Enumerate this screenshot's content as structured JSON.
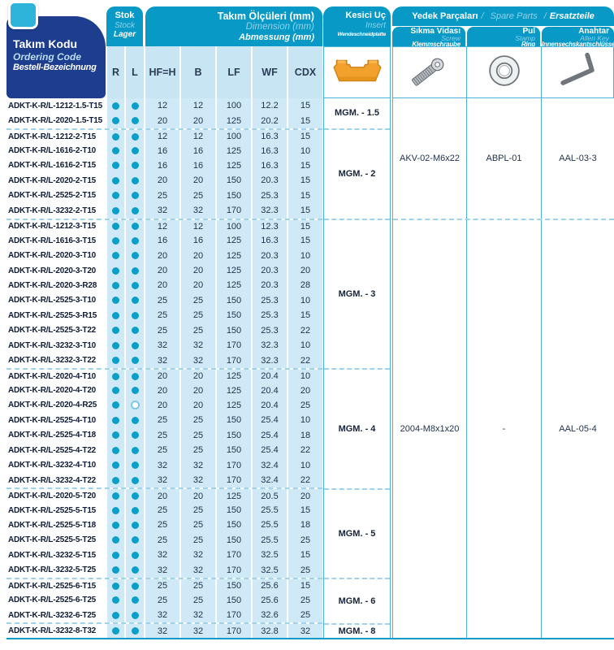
{
  "colors": {
    "accent_teal": "#0999c7",
    "dark_blue": "#1d3d8f",
    "row_bg": "#cfe9f6",
    "border_blue": "#4ab2d9",
    "dot_teal": "#0a9ec9",
    "insert_orange": "#f2a12c"
  },
  "header": {
    "ordering_code": {
      "line1": "Takım Kodu",
      "line2": "Ordering Code",
      "line3": "Bestell-Bezeichnung"
    },
    "stock": {
      "line1": "Stok",
      "line2": "Stock",
      "line3": "Lager"
    },
    "dimensions": {
      "line1": "Takım Ölçüleri (mm)",
      "line2": "Dimension (mm)",
      "line3": "Abmessung (mm)"
    },
    "insert": {
      "line1": "Kesici Uç",
      "line2": "Insert",
      "line3": "Wendeschneidplatte"
    },
    "spare_parts": {
      "title_tr": "Yedek Parçaları",
      "title_en": "Spare Parts",
      "title_de": "Ersatzteile",
      "sep": "/",
      "columns": [
        {
          "line1": "Sıkma Vidası",
          "line2": "Screw",
          "line3": "Klemmschraube",
          "icon": "screw-icon"
        },
        {
          "line1": "Pul",
          "line2": "Stamp",
          "line3": "Ring",
          "icon": "ring-icon"
        },
        {
          "line1": "Anahtar",
          "line2": "Allen Key",
          "line3": "Innensechskantschlüssel",
          "icon": "allen-key-icon"
        }
      ]
    },
    "sub_columns": [
      "R",
      "L",
      "HF=H",
      "B",
      "LF",
      "WF",
      "CDX"
    ]
  },
  "insert_groups": [
    {
      "label": "MGM. - 1.5",
      "rows": 2
    },
    {
      "label": "MGM. - 2",
      "rows": 6
    },
    {
      "label": "MGM. - 3",
      "rows": 10
    },
    {
      "label": "MGM. - 4",
      "rows": 8
    },
    {
      "label": "MGM. - 5",
      "rows": 6
    },
    {
      "label": "MGM. - 6",
      "rows": 3
    },
    {
      "label": "MGM. - 8",
      "rows": 1
    }
  ],
  "spare_groups": [
    {
      "rows": 8,
      "values": [
        "AKV-02-M6x22",
        "ABPL-01",
        "AAL-03-3"
      ]
    },
    {
      "rows": 28,
      "values": [
        "2004-M8x1x20",
        "-",
        "AAL-05-4"
      ]
    }
  ],
  "rows": [
    {
      "code": "ADKT-K-R/L-1212-1.5-T15",
      "r": "filled",
      "l": "filled",
      "hf": "12",
      "b": "12",
      "lf": "100",
      "wf": "12.2",
      "cdx": "15",
      "gs": false
    },
    {
      "code": "ADKT-K-R/L-2020-1.5-T15",
      "r": "filled",
      "l": "filled",
      "hf": "20",
      "b": "20",
      "lf": "125",
      "wf": "20.2",
      "cdx": "15",
      "gs": false
    },
    {
      "code": "ADKT-K-R/L-1212-2-T15",
      "r": "filled",
      "l": "filled",
      "hf": "12",
      "b": "12",
      "lf": "100",
      "wf": "16.3",
      "cdx": "15",
      "gs": true
    },
    {
      "code": "ADKT-K-R/L-1616-2-T10",
      "r": "filled",
      "l": "filled",
      "hf": "16",
      "b": "16",
      "lf": "125",
      "wf": "16.3",
      "cdx": "10",
      "gs": false
    },
    {
      "code": "ADKT-K-R/L-1616-2-T15",
      "r": "filled",
      "l": "filled",
      "hf": "16",
      "b": "16",
      "lf": "125",
      "wf": "16.3",
      "cdx": "15",
      "gs": false
    },
    {
      "code": "ADKT-K-R/L-2020-2-T15",
      "r": "filled",
      "l": "filled",
      "hf": "20",
      "b": "20",
      "lf": "150",
      "wf": "20.3",
      "cdx": "15",
      "gs": false
    },
    {
      "code": "ADKT-K-R/L-2525-2-T15",
      "r": "filled",
      "l": "filled",
      "hf": "25",
      "b": "25",
      "lf": "150",
      "wf": "25.3",
      "cdx": "15",
      "gs": false
    },
    {
      "code": "ADKT-K-R/L-3232-2-T15",
      "r": "filled",
      "l": "filled",
      "hf": "32",
      "b": "32",
      "lf": "170",
      "wf": "32.3",
      "cdx": "15",
      "gs": false
    },
    {
      "code": "ADKT-K-R/L-1212-3-T15",
      "r": "filled",
      "l": "filled",
      "hf": "12",
      "b": "12",
      "lf": "100",
      "wf": "12.3",
      "cdx": "15",
      "gs": true
    },
    {
      "code": "ADKT-K-R/L-1616-3-T15",
      "r": "filled",
      "l": "filled",
      "hf": "16",
      "b": "16",
      "lf": "125",
      "wf": "16.3",
      "cdx": "15",
      "gs": false
    },
    {
      "code": "ADKT-K-R/L-2020-3-T10",
      "r": "filled",
      "l": "filled",
      "hf": "20",
      "b": "20",
      "lf": "125",
      "wf": "20.3",
      "cdx": "10",
      "gs": false
    },
    {
      "code": "ADKT-K-R/L-2020-3-T20",
      "r": "filled",
      "l": "filled",
      "hf": "20",
      "b": "20",
      "lf": "125",
      "wf": "20.3",
      "cdx": "20",
      "gs": false
    },
    {
      "code": "ADKT-K-R/L-2020-3-R28",
      "r": "filled",
      "l": "filled",
      "hf": "20",
      "b": "20",
      "lf": "125",
      "wf": "20.3",
      "cdx": "28",
      "gs": false
    },
    {
      "code": "ADKT-K-R/L-2525-3-T10",
      "r": "filled",
      "l": "filled",
      "hf": "25",
      "b": "25",
      "lf": "150",
      "wf": "25.3",
      "cdx": "10",
      "gs": false
    },
    {
      "code": "ADKT-K-R/L-2525-3-R15",
      "r": "filled",
      "l": "filled",
      "hf": "25",
      "b": "25",
      "lf": "150",
      "wf": "25.3",
      "cdx": "15",
      "gs": false
    },
    {
      "code": "ADKT-K-R/L-2525-3-T22",
      "r": "filled",
      "l": "filled",
      "hf": "25",
      "b": "25",
      "lf": "150",
      "wf": "25.3",
      "cdx": "22",
      "gs": false
    },
    {
      "code": "ADKT-K-R/L-3232-3-T10",
      "r": "filled",
      "l": "filled",
      "hf": "32",
      "b": "32",
      "lf": "170",
      "wf": "32.3",
      "cdx": "10",
      "gs": false
    },
    {
      "code": "ADKT-K-R/L-3232-3-T22",
      "r": "filled",
      "l": "filled",
      "hf": "32",
      "b": "32",
      "lf": "170",
      "wf": "32.3",
      "cdx": "22",
      "gs": false
    },
    {
      "code": "ADKT-K-R/L-2020-4-T10",
      "r": "filled",
      "l": "filled",
      "hf": "20",
      "b": "20",
      "lf": "125",
      "wf": "20.4",
      "cdx": "10",
      "gs": true
    },
    {
      "code": "ADKT-K-R/L-2020-4-T20",
      "r": "filled",
      "l": "filled",
      "hf": "20",
      "b": "20",
      "lf": "125",
      "wf": "20.4",
      "cdx": "20",
      "gs": false
    },
    {
      "code": "ADKT-K-R/L-2020-4-R25",
      "r": "filled",
      "l": "open",
      "hf": "20",
      "b": "20",
      "lf": "125",
      "wf": "20.4",
      "cdx": "25",
      "gs": false
    },
    {
      "code": "ADKT-K-R/L-2525-4-T10",
      "r": "filled",
      "l": "filled",
      "hf": "25",
      "b": "25",
      "lf": "150",
      "wf": "25.4",
      "cdx": "10",
      "gs": false
    },
    {
      "code": "ADKT-K-R/L-2525-4-T18",
      "r": "filled",
      "l": "filled",
      "hf": "25",
      "b": "25",
      "lf": "150",
      "wf": "25.4",
      "cdx": "18",
      "gs": false
    },
    {
      "code": "ADKT-K-R/L-2525-4-T22",
      "r": "filled",
      "l": "filled",
      "hf": "25",
      "b": "25",
      "lf": "150",
      "wf": "25.4",
      "cdx": "22",
      "gs": false
    },
    {
      "code": "ADKT-K-R/L-3232-4-T10",
      "r": "filled",
      "l": "filled",
      "hf": "32",
      "b": "32",
      "lf": "170",
      "wf": "32.4",
      "cdx": "10",
      "gs": false
    },
    {
      "code": "ADKT-K-R/L-3232-4-T22",
      "r": "filled",
      "l": "filled",
      "hf": "32",
      "b": "32",
      "lf": "170",
      "wf": "32.4",
      "cdx": "22",
      "gs": false
    },
    {
      "code": "ADKT-K-R/L-2020-5-T20",
      "r": "filled",
      "l": "filled",
      "hf": "20",
      "b": "20",
      "lf": "125",
      "wf": "20.5",
      "cdx": "20",
      "gs": true
    },
    {
      "code": "ADKT-K-R/L-2525-5-T15",
      "r": "filled",
      "l": "filled",
      "hf": "25",
      "b": "25",
      "lf": "150",
      "wf": "25.5",
      "cdx": "15",
      "gs": false
    },
    {
      "code": "ADKT-K-R/L-2525-5-T18",
      "r": "filled",
      "l": "filled",
      "hf": "25",
      "b": "25",
      "lf": "150",
      "wf": "25.5",
      "cdx": "18",
      "gs": false
    },
    {
      "code": "ADKT-K-R/L-2525-5-T25",
      "r": "filled",
      "l": "filled",
      "hf": "25",
      "b": "25",
      "lf": "150",
      "wf": "25.5",
      "cdx": "25",
      "gs": false
    },
    {
      "code": "ADKT-K-R/L-3232-5-T15",
      "r": "filled",
      "l": "filled",
      "hf": "32",
      "b": "32",
      "lf": "170",
      "wf": "32.5",
      "cdx": "15",
      "gs": false
    },
    {
      "code": "ADKT-K-R/L-3232-5-T25",
      "r": "filled",
      "l": "filled",
      "hf": "32",
      "b": "32",
      "lf": "170",
      "wf": "32.5",
      "cdx": "25",
      "gs": false
    },
    {
      "code": "ADKT-K-R/L-2525-6-T15",
      "r": "filled",
      "l": "filled",
      "hf": "25",
      "b": "25",
      "lf": "150",
      "wf": "25.6",
      "cdx": "15",
      "gs": true
    },
    {
      "code": "ADKT-K-R/L-2525-6-T25",
      "r": "filled",
      "l": "filled",
      "hf": "25",
      "b": "25",
      "lf": "150",
      "wf": "25.6",
      "cdx": "25",
      "gs": false
    },
    {
      "code": "ADKT-K-R/L-3232-6-T25",
      "r": "filled",
      "l": "filled",
      "hf": "32",
      "b": "32",
      "lf": "170",
      "wf": "32.6",
      "cdx": "25",
      "gs": false
    },
    {
      "code": "ADKT-K-R/L-3232-8-T32",
      "r": "filled",
      "l": "filled",
      "hf": "32",
      "b": "32",
      "lf": "170",
      "wf": "32.8",
      "cdx": "32",
      "gs": true
    }
  ]
}
